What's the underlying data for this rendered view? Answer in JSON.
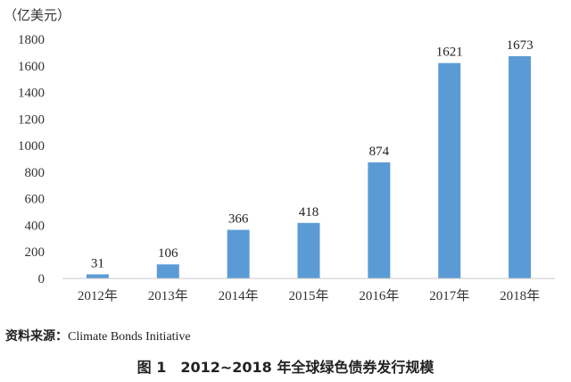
{
  "chart_data": {
    "type": "bar",
    "unit_label": "（亿美元）",
    "categories": [
      "2012年",
      "2013年",
      "2014年",
      "2015年",
      "2016年",
      "2017年",
      "2018年"
    ],
    "values": [
      31,
      106,
      366,
      418,
      874,
      1621,
      1673
    ],
    "data_labels": [
      "31",
      "106",
      "366",
      "418",
      "874",
      "1621",
      "1673"
    ],
    "yticks": [
      "0",
      "200",
      "400",
      "600",
      "800",
      "1000",
      "1200",
      "1400",
      "1600",
      "1800"
    ],
    "ylim": [
      0,
      1800
    ],
    "bar_color": "#5b9bd5",
    "grid": false,
    "legend": "none"
  },
  "source": {
    "label": "资料来源：",
    "text": "Climate Bonds Initiative"
  },
  "caption": "图 1　2012~2018 年全球绿色债券发行规模"
}
